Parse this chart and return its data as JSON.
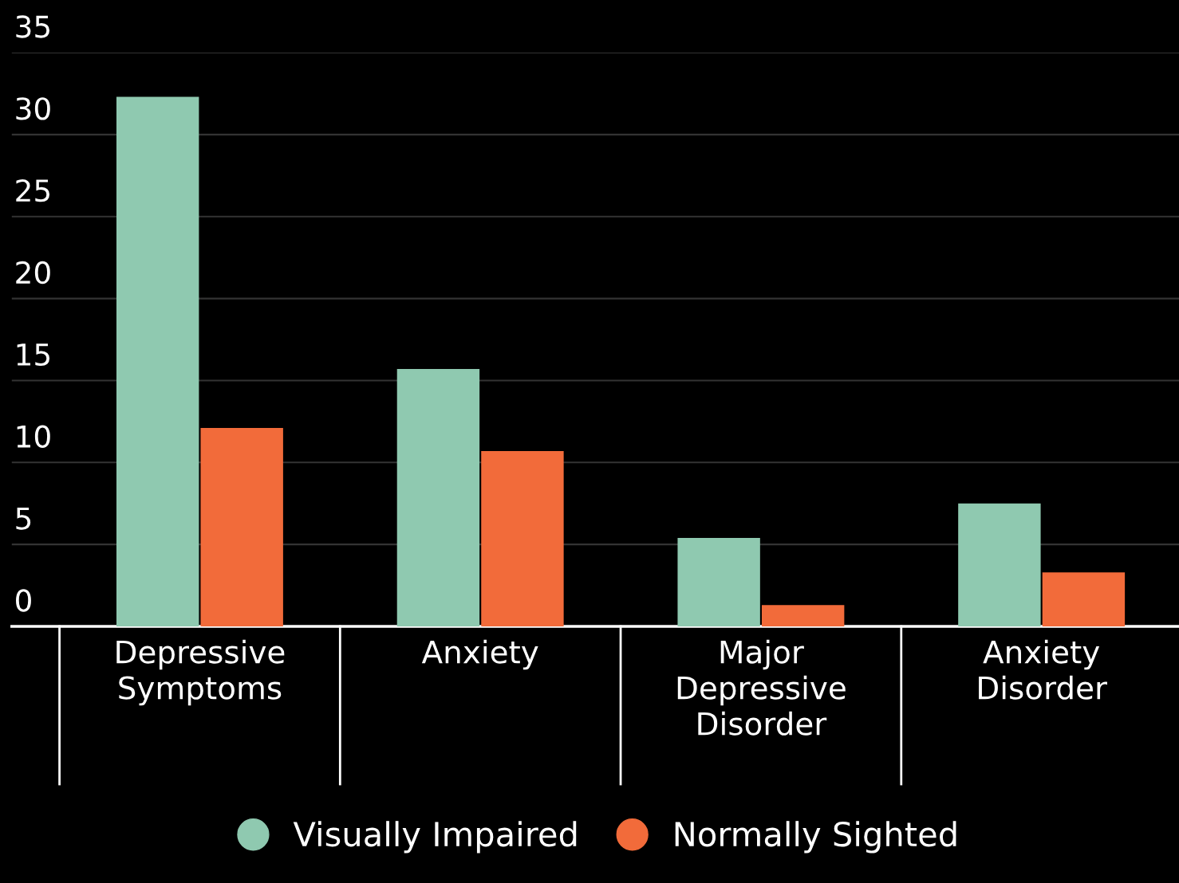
{
  "chart_data": {
    "type": "bar",
    "categories": [
      "Depressive\nSymptoms",
      "Anxiety",
      "Major\nDepressive\nDisorder",
      "Anxiety\nDisorder"
    ],
    "series": [
      {
        "name": "Visually Impaired",
        "color": "#8fc9b0",
        "values": [
          32.3,
          15.7,
          5.4,
          7.5
        ]
      },
      {
        "name": "Normally Sighted",
        "color": "#f26b3a",
        "values": [
          12.1,
          10.7,
          1.3,
          3.3
        ]
      }
    ],
    "ylim": [
      0,
      35
    ],
    "yticks": [
      0,
      5,
      10,
      15,
      20,
      25,
      30,
      35
    ],
    "grid": "y",
    "legend": "bottom"
  }
}
